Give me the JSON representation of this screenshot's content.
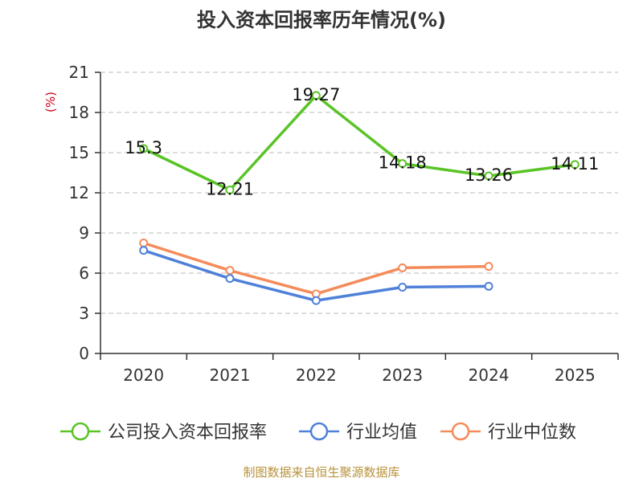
{
  "title": "投入资本回报率历年情况(%)",
  "unit": "(%)",
  "source": "制图数据来自恒生聚源数据库",
  "colors": {
    "company": "#5ac427",
    "industry_avg": "#4f81d9",
    "industry_median": "#f48b5a",
    "unit": "#d0021b",
    "source": "#b8923b",
    "axis": "#333333",
    "grid": "#bbbbbb"
  },
  "legend": [
    "公司投入资本回报率",
    "行业均值",
    "行业中位数"
  ],
  "chart_data": {
    "type": "line",
    "title": "投入资本回报率历年情况(%)",
    "xlabel": "",
    "ylabel": "(%)",
    "categories": [
      "2020",
      "2021",
      "2022",
      "2023",
      "2024",
      "2025"
    ],
    "ylim": [
      0,
      21
    ],
    "yticks": [
      0,
      3,
      6,
      9,
      12,
      15,
      18,
      21
    ],
    "grid": true,
    "legend_position": "bottom",
    "series": [
      {
        "name": "公司投入资本回报率",
        "values": [
          15.3,
          12.21,
          19.27,
          14.18,
          13.26,
          14.11
        ],
        "labels": [
          "15.3",
          "12.21",
          "19.27",
          "14.18",
          "13.26",
          "14.11"
        ]
      },
      {
        "name": "行业均值",
        "values": [
          7.7,
          5.6,
          3.95,
          4.95,
          5.02,
          null
        ]
      },
      {
        "name": "行业中位数",
        "values": [
          8.25,
          6.2,
          4.45,
          6.4,
          6.5,
          null
        ]
      }
    ]
  }
}
